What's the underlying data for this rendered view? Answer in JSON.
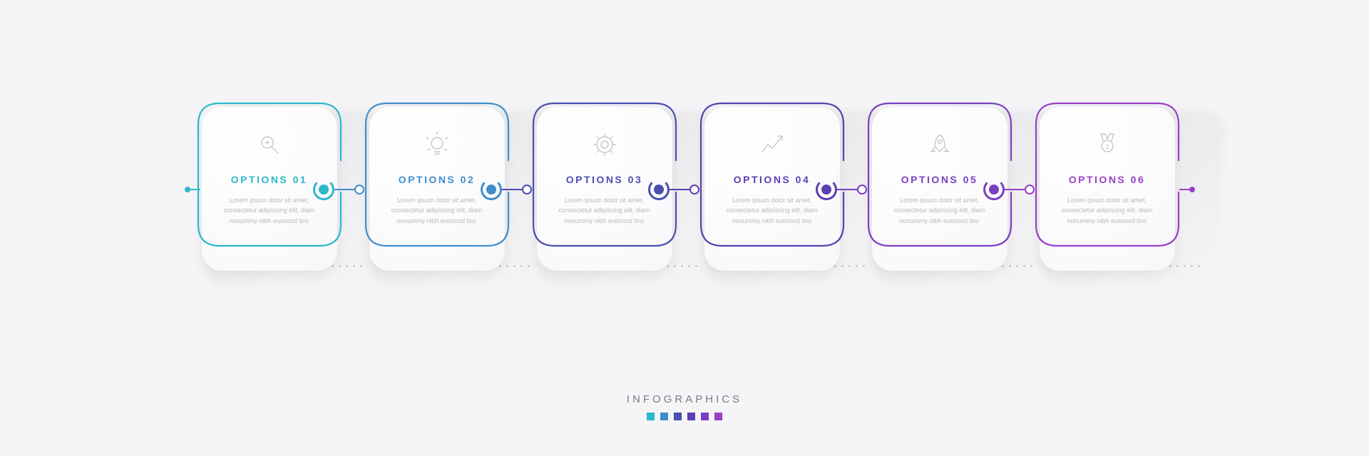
{
  "type": "infographic",
  "background_color": "#f5f5f7",
  "card_bg": "#fdfdfe",
  "card_radius": 28,
  "icon_stroke": "#bdbdc5",
  "desc_color": "#b8b8c0",
  "title_fontsize": 14,
  "title_letterspacing": 2.5,
  "desc_fontsize": 9,
  "step_width": 200,
  "step_gap": 35,
  "placeholder_text": "Lorem ipsum dolor sit amet, consectetur adipiscing elit, diam nonummy nibh euismod tinc",
  "steps": [
    {
      "label": "OPTIONS 01",
      "icon": "search",
      "color": "#2bb8c9"
    },
    {
      "label": "OPTIONS 02",
      "icon": "bulb",
      "color": "#3f8ecb"
    },
    {
      "label": "OPTIONS 03",
      "icon": "gear",
      "color": "#4a4fb0"
    },
    {
      "label": "OPTIONS 04",
      "icon": "growth",
      "color": "#5a3fb0"
    },
    {
      "label": "OPTIONS 05",
      "icon": "rocket",
      "color": "#7a3fc0"
    },
    {
      "label": "OPTIONS 06",
      "icon": "medal",
      "color": "#9a3fc8"
    }
  ],
  "footer": {
    "title": "INFOGRAPHICS",
    "title_color": "#7a7a82",
    "title_fontsize": 15,
    "title_letterspacing": 4,
    "swatches": [
      "#2bb8c9",
      "#3f8ecb",
      "#4a4fb0",
      "#5a3fb0",
      "#7a3fc0",
      "#9a3fc8"
    ],
    "swatch_size": 11
  }
}
